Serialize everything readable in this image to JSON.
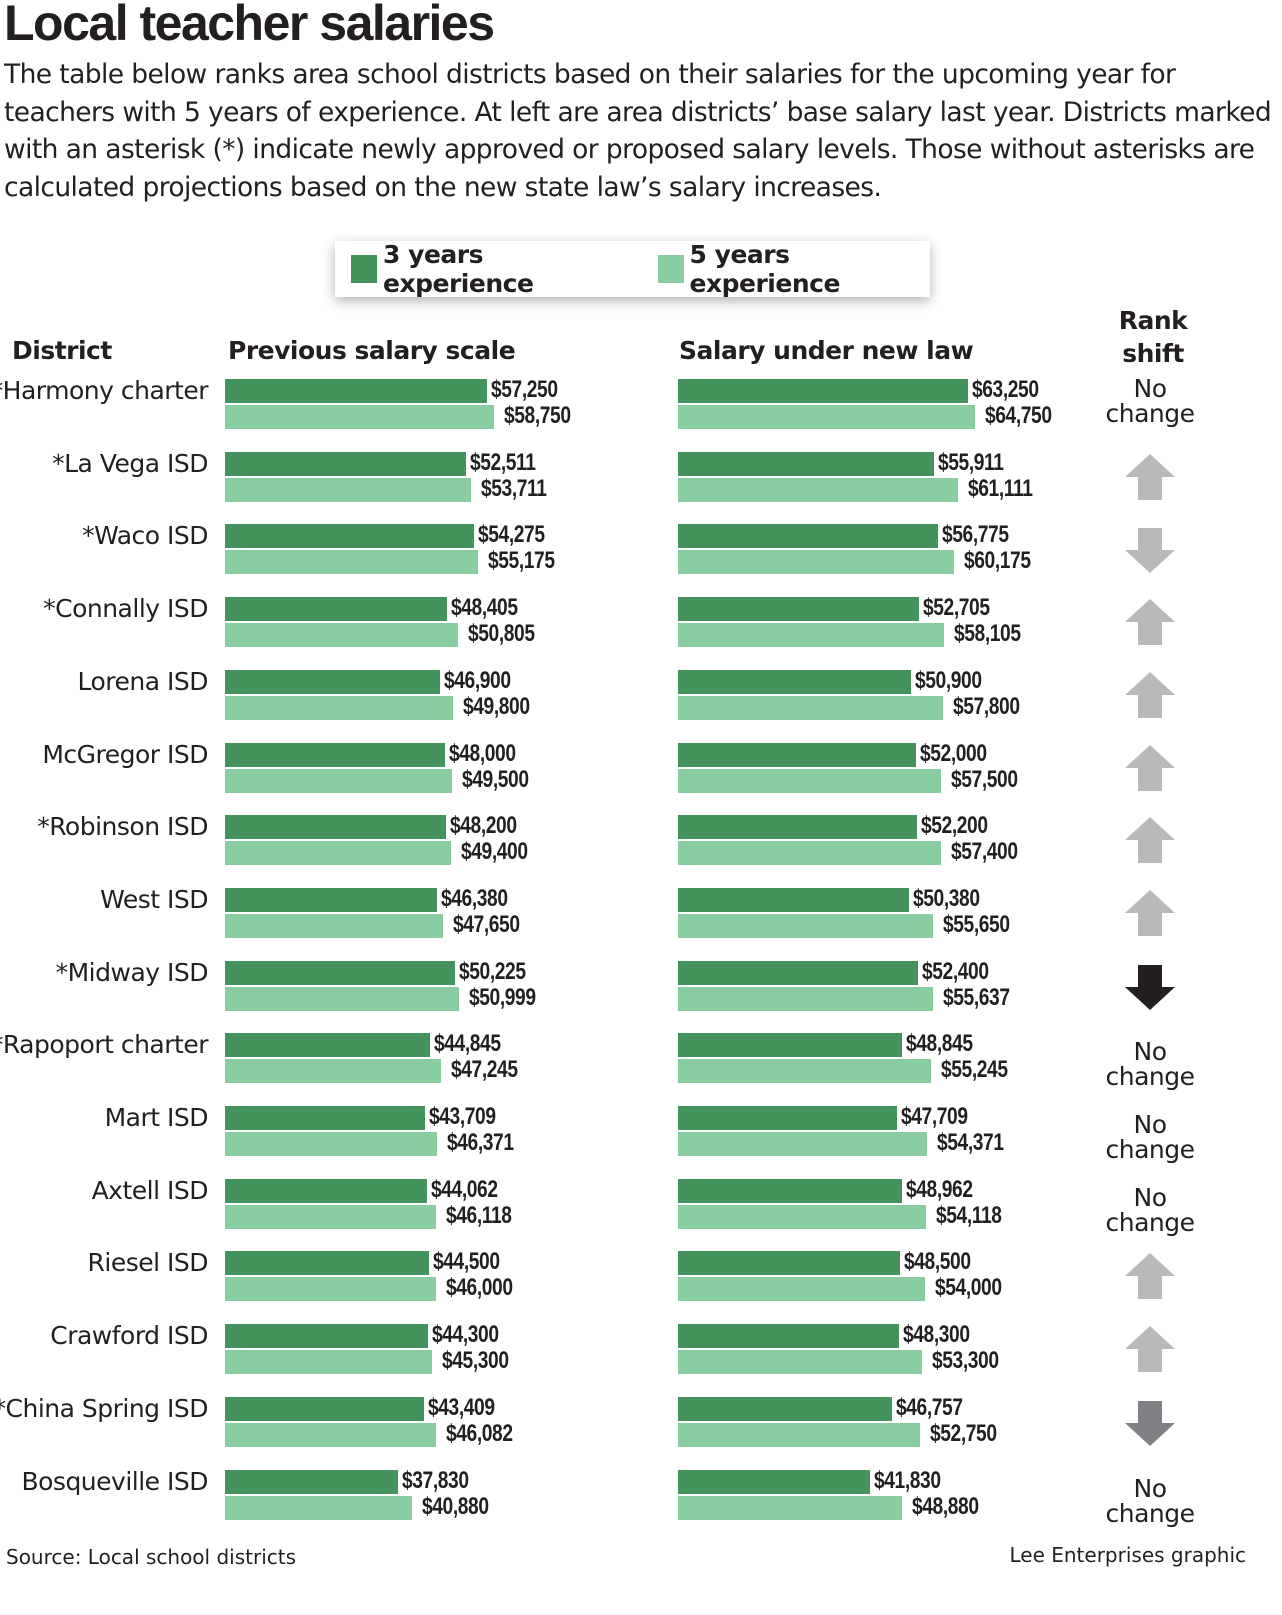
{
  "title": "Local teacher salaries",
  "subtitle": "The table below ranks area school districts based on their salaries for the upcoming year for teachers with 5 years of experience. At left are area districts’ base salary last year. Districts marked with an asterisk (*) indicate newly approved or proposed salary levels. Those without asterisks are calculated projections based on the new state law’s salary increases.",
  "footer": {
    "source": "Source: Local school districts",
    "credit": "Lee Enterprises graphic"
  },
  "chart_data": {
    "type": "bar",
    "orientation": "horizontal",
    "legend": {
      "placement": "top-center",
      "entries": [
        "3 years experience",
        "5 years experience"
      ]
    },
    "colors": {
      "3 years experience": "#44935c",
      "5 years experience": "#88cc9f",
      "arrow_light": "#b8b9bb",
      "arrow_dark": "#808184",
      "arrow_black": "#231f20"
    },
    "headers": {
      "district": "District",
      "previous": "Previous salary scale",
      "new": "Salary under new law",
      "rank_line1": "Rank",
      "rank_line2": "shift"
    },
    "no_change_line1": "No",
    "no_change_line2": "change",
    "rows": [
      {
        "district": "*Harmony charter",
        "prev3": 57250,
        "prev3_label": "$57,250",
        "prev5": 58750,
        "prev5_label": "$58,750",
        "new3": 63250,
        "new3_label": "$63,250",
        "new5": 64750,
        "new5_label": "$64,750",
        "rank_shift": "none"
      },
      {
        "district": "*La Vega ISD",
        "prev3": 52511,
        "prev3_label": "$52,511",
        "prev5": 53711,
        "prev5_label": "$53,711",
        "new3": 55911,
        "new3_label": "$55,911",
        "new5": 61111,
        "new5_label": "$61,111",
        "rank_shift": "up"
      },
      {
        "district": "*Waco ISD",
        "prev3": 54275,
        "prev3_label": "$54,275",
        "prev5": 55175,
        "prev5_label": "$55,175",
        "new3": 56775,
        "new3_label": "$56,775",
        "new5": 60175,
        "new5_label": "$60,175",
        "rank_shift": "down",
        "arrow_color": "light"
      },
      {
        "district": "*Connally ISD",
        "prev3": 48405,
        "prev3_label": "$48,405",
        "prev5": 50805,
        "prev5_label": "$50,805",
        "new3": 52705,
        "new3_label": "$52,705",
        "new5": 58105,
        "new5_label": "$58,105",
        "rank_shift": "up"
      },
      {
        "district": "Lorena ISD",
        "prev3": 46900,
        "prev3_label": "$46,900",
        "prev5": 49800,
        "prev5_label": "$49,800",
        "new3": 50900,
        "new3_label": "$50,900",
        "new5": 57800,
        "new5_label": "$57,800",
        "rank_shift": "up"
      },
      {
        "district": "McGregor ISD",
        "prev3": 48000,
        "prev3_label": "$48,000",
        "prev5": 49500,
        "prev5_label": "$49,500",
        "new3": 52000,
        "new3_label": "$52,000",
        "new5": 57500,
        "new5_label": "$57,500",
        "rank_shift": "up"
      },
      {
        "district": "*Robinson ISD",
        "prev3": 48200,
        "prev3_label": "$48,200",
        "prev5": 49400,
        "prev5_label": "$49,400",
        "new3": 52200,
        "new3_label": "$52,200",
        "new5": 57400,
        "new5_label": "$57,400",
        "rank_shift": "up"
      },
      {
        "district": "West ISD",
        "prev3": 46380,
        "prev3_label": "$46,380",
        "prev5": 47650,
        "prev5_label": "$47,650",
        "new3": 50380,
        "new3_label": "$50,380",
        "new5": 55650,
        "new5_label": "$55,650",
        "rank_shift": "up"
      },
      {
        "district": "*Midway ISD",
        "prev3": 50225,
        "prev3_label": "$50,225",
        "prev5": 50999,
        "prev5_label": "$50,999",
        "new3": 52400,
        "new3_label": "$52,400",
        "new5": 55637,
        "new5_label": "$55,637",
        "rank_shift": "down",
        "arrow_color": "black"
      },
      {
        "district": "*Rapoport charter",
        "prev3": 44845,
        "prev3_label": "$44,845",
        "prev5": 47245,
        "prev5_label": "$47,245",
        "new3": 48845,
        "new3_label": "$48,845",
        "new5": 55245,
        "new5_label": "$55,245",
        "rank_shift": "none"
      },
      {
        "district": "Mart ISD",
        "prev3": 43709,
        "prev3_label": "$43,709",
        "prev5": 46371,
        "prev5_label": "$46,371",
        "new3": 47709,
        "new3_label": "$47,709",
        "new5": 54371,
        "new5_label": "$54,371",
        "rank_shift": "none"
      },
      {
        "district": "Axtell ISD",
        "prev3": 44062,
        "prev3_label": "$44,062",
        "prev5": 46118,
        "prev5_label": "$46,118",
        "new3": 48962,
        "new3_label": "$48,962",
        "new5": 54118,
        "new5_label": "$54,118",
        "rank_shift": "none"
      },
      {
        "district": "Riesel ISD",
        "prev3": 44500,
        "prev3_label": "$44,500",
        "prev5": 46000,
        "prev5_label": "$46,000",
        "new3": 48500,
        "new3_label": "$48,500",
        "new5": 54000,
        "new5_label": "$54,000",
        "rank_shift": "up"
      },
      {
        "district": "Crawford ISD",
        "prev3": 44300,
        "prev3_label": "$44,300",
        "prev5": 45300,
        "prev5_label": "$45,300",
        "new3": 48300,
        "new3_label": "$48,300",
        "new5": 53300,
        "new5_label": "$53,300",
        "rank_shift": "up"
      },
      {
        "district": "*China Spring ISD",
        "prev3": 43409,
        "prev3_label": "$43,409",
        "prev5": 46082,
        "prev5_label": "$46,082",
        "new3": 46757,
        "new3_label": "$46,757",
        "new5": 52750,
        "new5_label": "$52,750",
        "rank_shift": "down",
        "arrow_color": "dark"
      },
      {
        "district": "Bosqueville ISD",
        "prev3": 37830,
        "prev3_label": "$37,830",
        "prev5": 40880,
        "prev5_label": "$40,880",
        "new3": 41830,
        "new3_label": "$41,830",
        "new5": 48880,
        "new5_label": "$48,880",
        "rank_shift": "none"
      }
    ]
  }
}
